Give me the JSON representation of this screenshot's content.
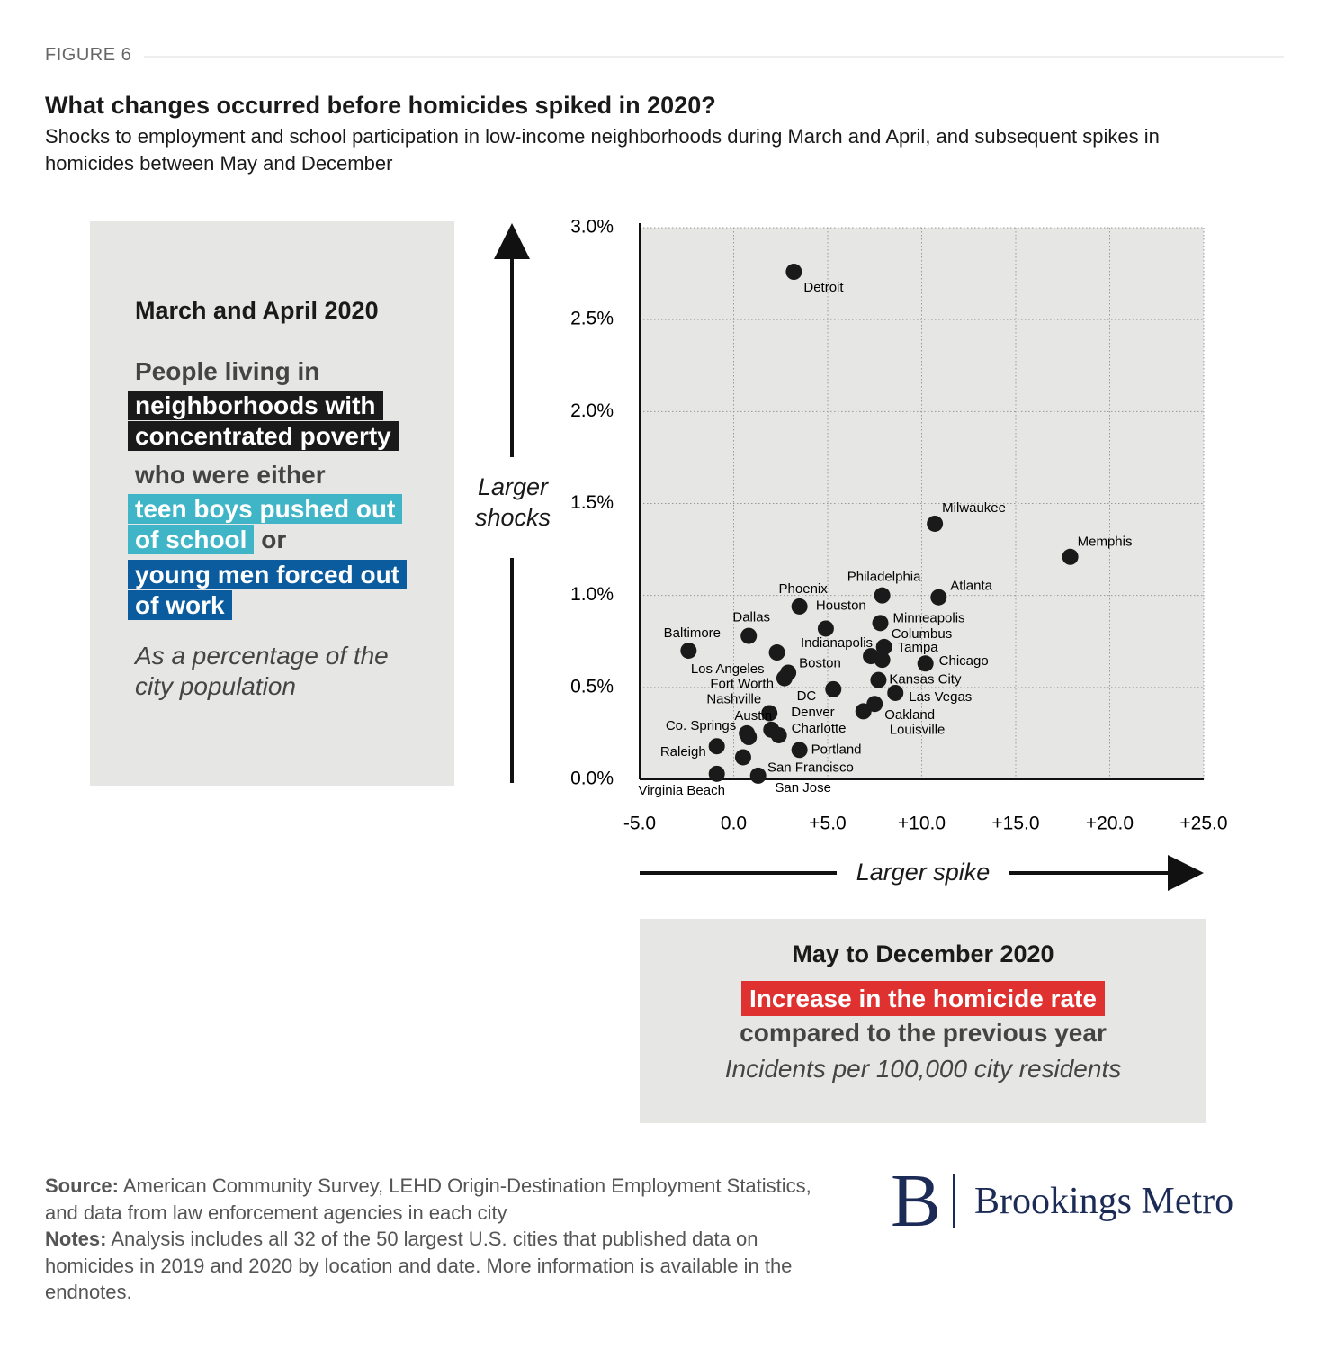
{
  "figure_label": "FIGURE 6",
  "chart_data": {
    "type": "scatter",
    "title": "What changes occurred before homicides spiked in 2020?",
    "subtitle": "Shocks to employment and school participation in low-income neighborhoods during March and April, and subsequent spikes in homicides between May and December",
    "y_axis_label": "Larger shocks",
    "x_axis_label": "Larger spike",
    "y_description": {
      "heading": "March and April 2020",
      "intro": "People living in",
      "highlight": "neighborhoods with concentrated poverty",
      "connector": "who were either",
      "group_a": "teen boys pushed out of school",
      "or": "or",
      "group_b": "young men forced out of work",
      "unit": "As a percentage of the city population"
    },
    "x_description": {
      "heading": "May to December 2020",
      "highlight": "Increase in the homicide rate",
      "connector": "compared to the previous year",
      "unit": "Incidents per 100,000 city residents"
    },
    "color": "#1a1a1a",
    "labels": [
      "Detroit",
      "Milwaukee",
      "Memphis",
      "Philadelphia",
      "Atlanta",
      "Phoenix",
      "Houston",
      "Dallas",
      "Minneapolis",
      "Columbus",
      "Indianapolis",
      "Tampa",
      "Baltimore",
      "Los Angeles",
      "Chicago",
      "Boston",
      "Fort Worth",
      "Kansas City",
      "DC",
      "Las Vegas",
      "Oakland",
      "Louisville",
      "Nashville",
      "Denver",
      "Charlotte",
      "Austin",
      "Co. Springs",
      "Portland",
      "Raleigh",
      "San Francisco",
      "Virginia Beach",
      "San Jose"
    ],
    "x": [
      3.2,
      10.7,
      17.9,
      7.9,
      10.9,
      3.5,
      4.9,
      0.8,
      7.8,
      8.0,
      7.3,
      7.9,
      -2.4,
      2.3,
      10.2,
      2.9,
      2.7,
      7.7,
      5.3,
      8.6,
      7.5,
      6.9,
      1.9,
      2.0,
      2.4,
      0.7,
      0.8,
      3.5,
      -0.9,
      0.5,
      -0.9,
      1.3
    ],
    "values": [
      2.76,
      1.39,
      1.21,
      1.0,
      0.99,
      0.94,
      0.82,
      0.78,
      0.85,
      0.72,
      0.67,
      0.65,
      0.7,
      0.69,
      0.63,
      0.58,
      0.55,
      0.54,
      0.49,
      0.47,
      0.41,
      0.37,
      0.36,
      0.27,
      0.24,
      0.25,
      0.23,
      0.16,
      0.18,
      0.12,
      0.03,
      0.02
    ],
    "xlim": [
      -5,
      25
    ],
    "ylim": [
      0,
      3
    ],
    "xticks": [
      {
        "value": -5,
        "label": "-5.0"
      },
      {
        "value": 0,
        "label": "0.0"
      },
      {
        "value": 5,
        "label": "+5.0"
      },
      {
        "value": 10,
        "label": "+10.0"
      },
      {
        "value": 15,
        "label": "+15.0"
      },
      {
        "value": 20,
        "label": "+20.0"
      },
      {
        "value": 25,
        "label": "+25.0"
      }
    ],
    "yticks": [
      {
        "value": 0,
        "label": "0.0%"
      },
      {
        "value": 0.5,
        "label": "0.5%"
      },
      {
        "value": 1,
        "label": "1.0%"
      },
      {
        "value": 1.5,
        "label": "1.5%"
      },
      {
        "value": 2,
        "label": "2.0%"
      },
      {
        "value": 2.5,
        "label": "2.5%"
      },
      {
        "value": 3,
        "label": "3.0%"
      }
    ],
    "grid": true
  },
  "source": {
    "label": "Source:",
    "text": "American Community Survey, LEHD Origin-Destination Employment Statistics, and data from law enforcement agencies in each city"
  },
  "notes": {
    "label": "Notes:",
    "text": "Analysis includes all 32 of the 50 largest U.S. cities that published data on homicides in 2019 and 2020 by location and date. More information is available in the endnotes."
  },
  "logo": {
    "letter": "B",
    "name": "Brookings Metro"
  }
}
